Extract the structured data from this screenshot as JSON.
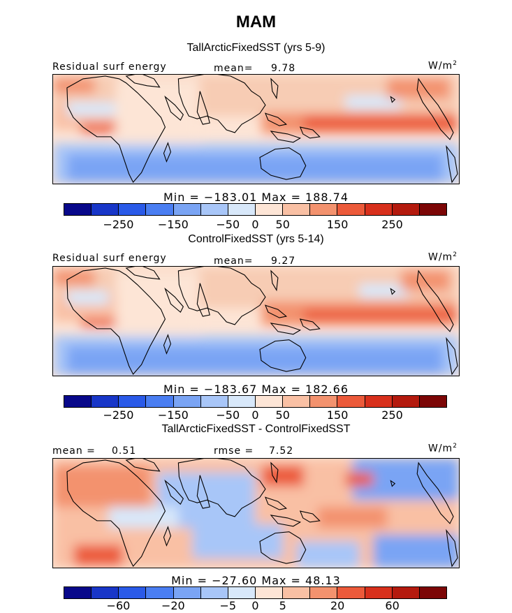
{
  "title": "MAM",
  "chart_data": [
    {
      "type": "heatmap",
      "title": "TallArcticFixedSST (yrs 5-9)",
      "variable_label": "Residual surf energy",
      "mean_label": "mean=",
      "mean": "9.78",
      "units_base": "W/m",
      "units_sup": "2",
      "stats": "Min = −183.01  Max = 188.74",
      "colorbar_ticks": [
        "−250",
        "−150",
        "−50",
        "0",
        "50",
        "150",
        "250"
      ],
      "colorbar_colors": [
        "#08088a",
        "#1836c8",
        "#2a5ae8",
        "#4a7ef2",
        "#7aa4f4",
        "#a8c6f8",
        "#d8e8fa",
        "#fde5d6",
        "#f9c0a4",
        "#f3926e",
        "#ec5a3a",
        "#d8301c",
        "#b41a0e",
        "#7c0606"
      ]
    },
    {
      "type": "heatmap",
      "title": "ControlFixedSST (yrs 5-14)",
      "variable_label": "Residual surf energy",
      "mean_label": "mean=",
      "mean": "9.27",
      "units_base": "W/m",
      "units_sup": "2",
      "stats": "Min = −183.67  Max = 182.66",
      "colorbar_ticks": [
        "−250",
        "−150",
        "−50",
        "0",
        "50",
        "150",
        "250"
      ],
      "colorbar_colors": [
        "#08088a",
        "#1836c8",
        "#2a5ae8",
        "#4a7ef2",
        "#7aa4f4",
        "#a8c6f8",
        "#d8e8fa",
        "#fde5d6",
        "#f9c0a4",
        "#f3926e",
        "#ec5a3a",
        "#d8301c",
        "#b41a0e",
        "#7c0606"
      ]
    },
    {
      "type": "heatmap",
      "title": "TallArcticFixedSST - ControlFixedSST",
      "mean_label": "mean =",
      "mean": "0.51",
      "rmse_label": "rmse =",
      "rmse": "7.52",
      "units_base": "W/m",
      "units_sup": "2",
      "stats": "Min = −27.60  Max = 48.13",
      "colorbar_ticks": [
        "−60",
        "−20",
        "−5",
        "0",
        "5",
        "20",
        "60"
      ],
      "colorbar_colors": [
        "#08088a",
        "#1836c8",
        "#2a5ae8",
        "#4a7ef2",
        "#7aa4f4",
        "#a8c6f8",
        "#d8e8fa",
        "#fde5d6",
        "#f9c0a4",
        "#f3926e",
        "#ec5a3a",
        "#d8301c",
        "#b41a0e",
        "#7c0606"
      ]
    }
  ]
}
